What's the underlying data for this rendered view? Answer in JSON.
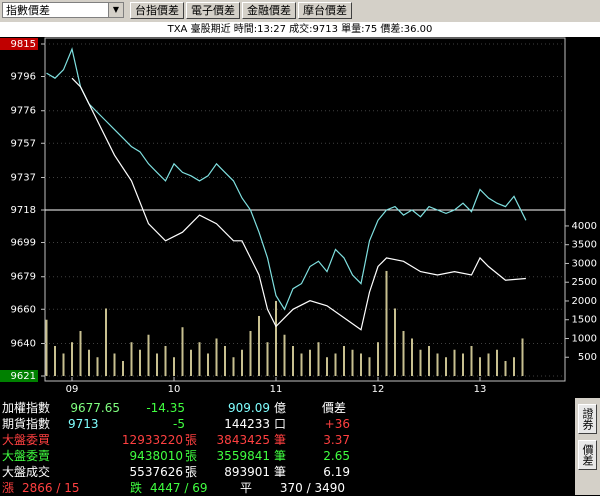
{
  "toolbar": {
    "dropdown": "指數價差",
    "buttons": [
      "台指價差",
      "電子價差",
      "金融價差",
      "摩台價差"
    ]
  },
  "status": "TXA 臺股期近 時間:13:27 成交:9713 單量:75 價差:36.00",
  "chart_data": {
    "type": "line",
    "xlim": [
      0,
      300
    ],
    "xticks": [
      {
        "value": 15,
        "label": "09"
      },
      {
        "value": 75,
        "label": "10"
      },
      {
        "value": 135,
        "label": "11"
      },
      {
        "value": 195,
        "label": "12"
      },
      {
        "value": 255,
        "label": "13"
      }
    ],
    "ylim": [
      9621,
      9815
    ],
    "yticks": [
      9815,
      9796,
      9776,
      9757,
      9737,
      9718,
      9699,
      9679,
      9660,
      9640,
      9621
    ],
    "y2lim": [
      0,
      8850
    ],
    "y2ticks": [
      4000,
      3500,
      3000,
      2500,
      2000,
      1500,
      1000,
      500
    ],
    "reference": 9718,
    "series": [
      {
        "color": "#7fe0e0",
        "x": [
          0,
          5,
          10,
          15,
          20,
          25,
          30,
          35,
          40,
          45,
          50,
          55,
          60,
          65,
          70,
          75,
          80,
          85,
          90,
          95,
          100,
          105,
          110,
          115,
          120,
          125,
          130,
          135,
          140,
          145,
          150,
          155,
          160,
          165,
          170,
          175,
          180,
          185,
          190,
          195,
          200,
          205,
          210,
          215,
          220,
          225,
          230,
          235,
          240,
          245,
          250,
          255,
          260,
          265,
          270,
          275,
          282
        ],
        "values": [
          9798,
          9795,
          9800,
          9812,
          9790,
          9780,
          9775,
          9770,
          9765,
          9760,
          9755,
          9752,
          9745,
          9740,
          9735,
          9745,
          9740,
          9738,
          9735,
          9738,
          9745,
          9740,
          9735,
          9725,
          9718,
          9705,
          9690,
          9668,
          9660,
          9672,
          9675,
          9685,
          9688,
          9682,
          9695,
          9690,
          9680,
          9675,
          9700,
          9712,
          9718,
          9720,
          9715,
          9718,
          9714,
          9720,
          9718,
          9716,
          9718,
          9722,
          9717,
          9730,
          9725,
          9722,
          9720,
          9726,
          9712
        ]
      },
      {
        "color": "#ffffff",
        "x": [
          15,
          20,
          30,
          40,
          50,
          60,
          70,
          80,
          90,
          100,
          110,
          115,
          120,
          125,
          130,
          135,
          140,
          145,
          155,
          165,
          175,
          185,
          190,
          195,
          200,
          210,
          220,
          230,
          240,
          250,
          255,
          260,
          270,
          282
        ],
        "values": [
          9795,
          9790,
          9770,
          9750,
          9735,
          9710,
          9700,
          9705,
          9715,
          9710,
          9700,
          9700,
          9690,
          9680,
          9660,
          9650,
          9655,
          9660,
          9665,
          9662,
          9655,
          9648,
          9670,
          9685,
          9690,
          9688,
          9682,
          9680,
          9682,
          9680,
          9690,
          9685,
          9677,
          9678
        ]
      },
      {
        "type": "bar",
        "axis": "y2",
        "color": "#c8c090",
        "x": [
          0,
          5,
          10,
          15,
          20,
          25,
          30,
          35,
          40,
          45,
          50,
          55,
          60,
          65,
          70,
          75,
          80,
          85,
          90,
          95,
          100,
          105,
          110,
          115,
          120,
          125,
          130,
          135,
          140,
          145,
          150,
          155,
          160,
          165,
          170,
          175,
          180,
          185,
          190,
          195,
          200,
          205,
          210,
          215,
          220,
          225,
          230,
          235,
          240,
          245,
          250,
          255,
          260,
          265,
          270,
          275,
          280
        ],
        "values": [
          1500,
          800,
          600,
          900,
          1200,
          700,
          500,
          1800,
          600,
          400,
          900,
          700,
          1100,
          600,
          800,
          500,
          1300,
          700,
          900,
          600,
          1000,
          800,
          500,
          700,
          1200,
          1600,
          900,
          2000,
          1100,
          800,
          600,
          700,
          900,
          500,
          600,
          800,
          700,
          600,
          500,
          900,
          2800,
          1800,
          1200,
          1000,
          700,
          800,
          600,
          500,
          700,
          600,
          800,
          500,
          600,
          700,
          400,
          500,
          1000
        ]
      }
    ]
  },
  "panel": {
    "rows": [
      [
        "加權指數",
        "9677.65",
        "-14.35",
        "909.09",
        "億",
        "價差"
      ],
      [
        "期貨指數",
        "9713",
        "-5",
        "144233",
        "口",
        "+36"
      ],
      [
        "大盤委買",
        "12933220",
        "張",
        "3843425",
        "筆",
        "3.37"
      ],
      [
        "大盤委賣",
        "9438010",
        "張",
        "3559841",
        "筆",
        "2.65"
      ],
      [
        "大盤成交",
        "5537626",
        "張",
        "893901",
        "筆",
        "6.19"
      ],
      [
        "漲",
        "2866 / 15",
        "跌",
        "4447 / 69",
        "平",
        "370 / 3490"
      ]
    ],
    "side_buttons": [
      "證券",
      "價差"
    ]
  }
}
